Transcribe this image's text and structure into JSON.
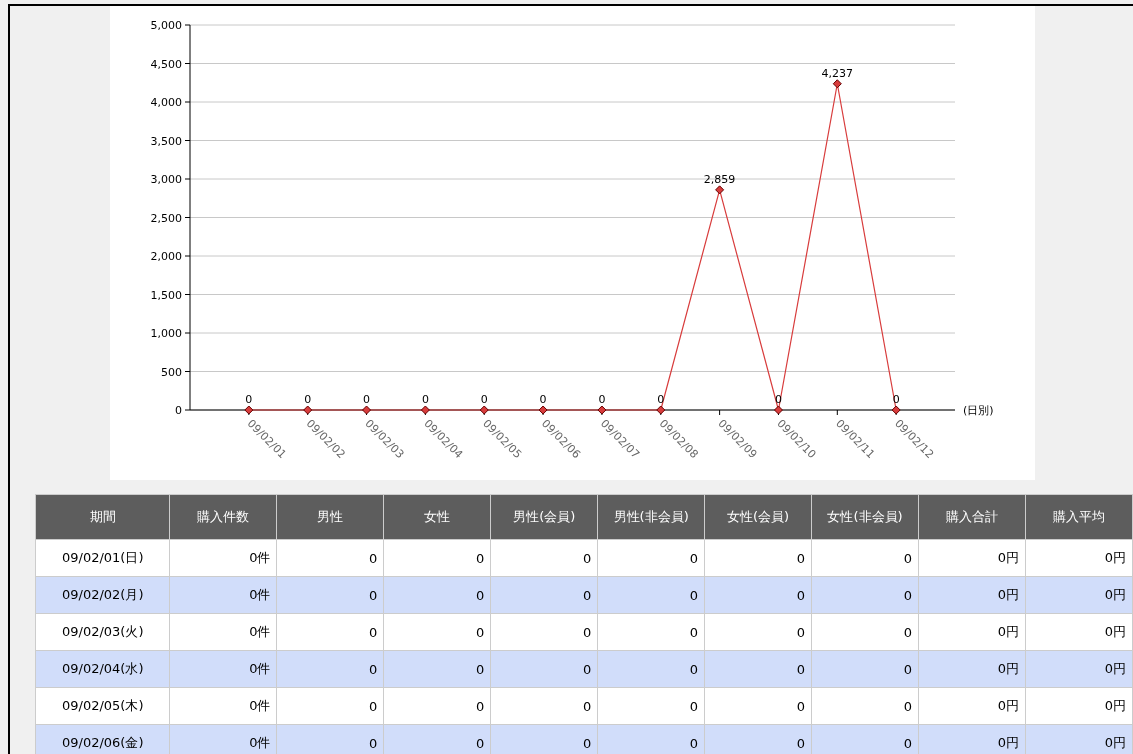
{
  "chart_data": [
    {
      "type": "line",
      "xlabel": "(日別)",
      "categories": [
        "09/02/01",
        "09/02/02",
        "09/02/03",
        "09/02/04",
        "09/02/05",
        "09/02/06",
        "09/02/07",
        "09/02/08",
        "09/02/09",
        "09/02/10",
        "09/02/11",
        "09/02/12"
      ],
      "values": [
        0,
        0,
        0,
        0,
        0,
        0,
        0,
        0,
        2859,
        0,
        4237,
        0
      ],
      "value_labels": [
        "0",
        "0",
        "0",
        "0",
        "0",
        "0",
        "0",
        "0",
        "2,859",
        "0",
        "4,237",
        "0"
      ],
      "color": "#d83c3c",
      "marker": "diamond",
      "grid": "y",
      "ylim": [
        0,
        5000
      ],
      "yticks": [
        0,
        500,
        {
          "value": 1000,
          "label": "1,000"
        },
        {
          "value": 1500,
          "label": "1,500"
        },
        {
          "value": 2000,
          "label": "2,000"
        },
        {
          "value": 2500,
          "label": "2,500"
        },
        {
          "value": 3000,
          "label": "3,000"
        },
        {
          "value": 3500,
          "label": "3,500"
        },
        {
          "value": 4000,
          "label": "4,000"
        },
        {
          "value": 4500,
          "label": "4,500"
        },
        {
          "value": 5000,
          "label": "5,000"
        }
      ]
    },
    {
      "type": "other",
      "ylabel": "期間",
      "categories": [
        "購入件数",
        "男性",
        "女性",
        "男性(会員)",
        "男性(非会員)",
        "女性(会員)",
        "女性(非会員)",
        "購入合計",
        "購入平均"
      ],
      "y_categories": [
        "09/02/01(日)",
        "09/02/02(月)",
        "09/02/03(火)",
        "09/02/04(水)",
        "09/02/05(木)",
        "09/02/06(金)"
      ],
      "cell_labels": [
        [
          "0件",
          "0",
          "0",
          "0",
          "0",
          "0",
          "0",
          "0円",
          "0円"
        ],
        [
          "0件",
          "0",
          "0",
          "0",
          "0",
          "0",
          "0",
          "0円",
          "0円"
        ],
        [
          "0件",
          "0",
          "0",
          "0",
          "0",
          "0",
          "0",
          "0円",
          "0円"
        ],
        [
          "0件",
          "0",
          "0",
          "0",
          "0",
          "0",
          "0",
          "0円",
          "0円"
        ],
        [
          "0件",
          "0",
          "0",
          "0",
          "0",
          "0",
          "0",
          "0円",
          "0円"
        ],
        [
          "0件",
          "0",
          "0",
          "0",
          "0",
          "0",
          "0",
          "0円",
          "0円"
        ]
      ]
    }
  ]
}
